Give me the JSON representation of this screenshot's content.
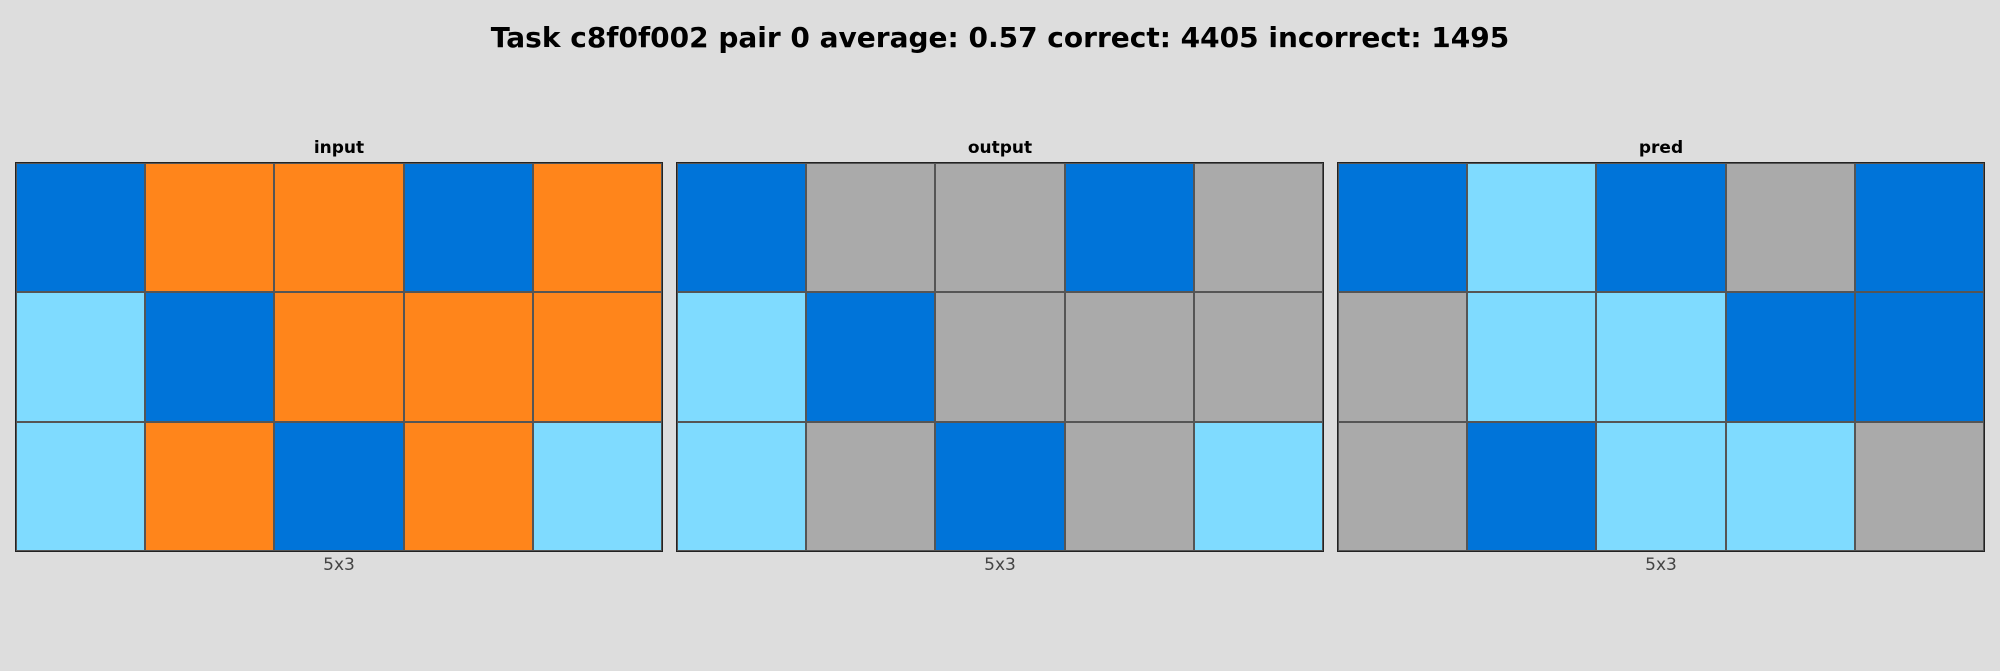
{
  "title": "Task c8f0f002 pair 0 average: 0.57 correct: 4405 incorrect: 1495",
  "palette": {
    "1": "#0074d9",
    "7": "#ff851b",
    "8": "#7fdbff",
    "5": "#aaaaaa",
    "background": "#dddddd"
  },
  "panels": [
    {
      "title": "input",
      "caption": "5x3",
      "grid": [
        [
          1,
          7,
          7,
          1,
          7
        ],
        [
          8,
          1,
          7,
          7,
          7
        ],
        [
          8,
          7,
          1,
          7,
          8
        ]
      ]
    },
    {
      "title": "output",
      "caption": "5x3",
      "grid": [
        [
          1,
          5,
          5,
          1,
          5
        ],
        [
          8,
          1,
          5,
          5,
          5
        ],
        [
          8,
          5,
          1,
          5,
          8
        ]
      ]
    },
    {
      "title": "pred",
      "caption": "5x3",
      "grid": [
        [
          1,
          8,
          1,
          5,
          1
        ],
        [
          5,
          8,
          8,
          1,
          1
        ],
        [
          5,
          1,
          8,
          8,
          5
        ]
      ]
    }
  ]
}
